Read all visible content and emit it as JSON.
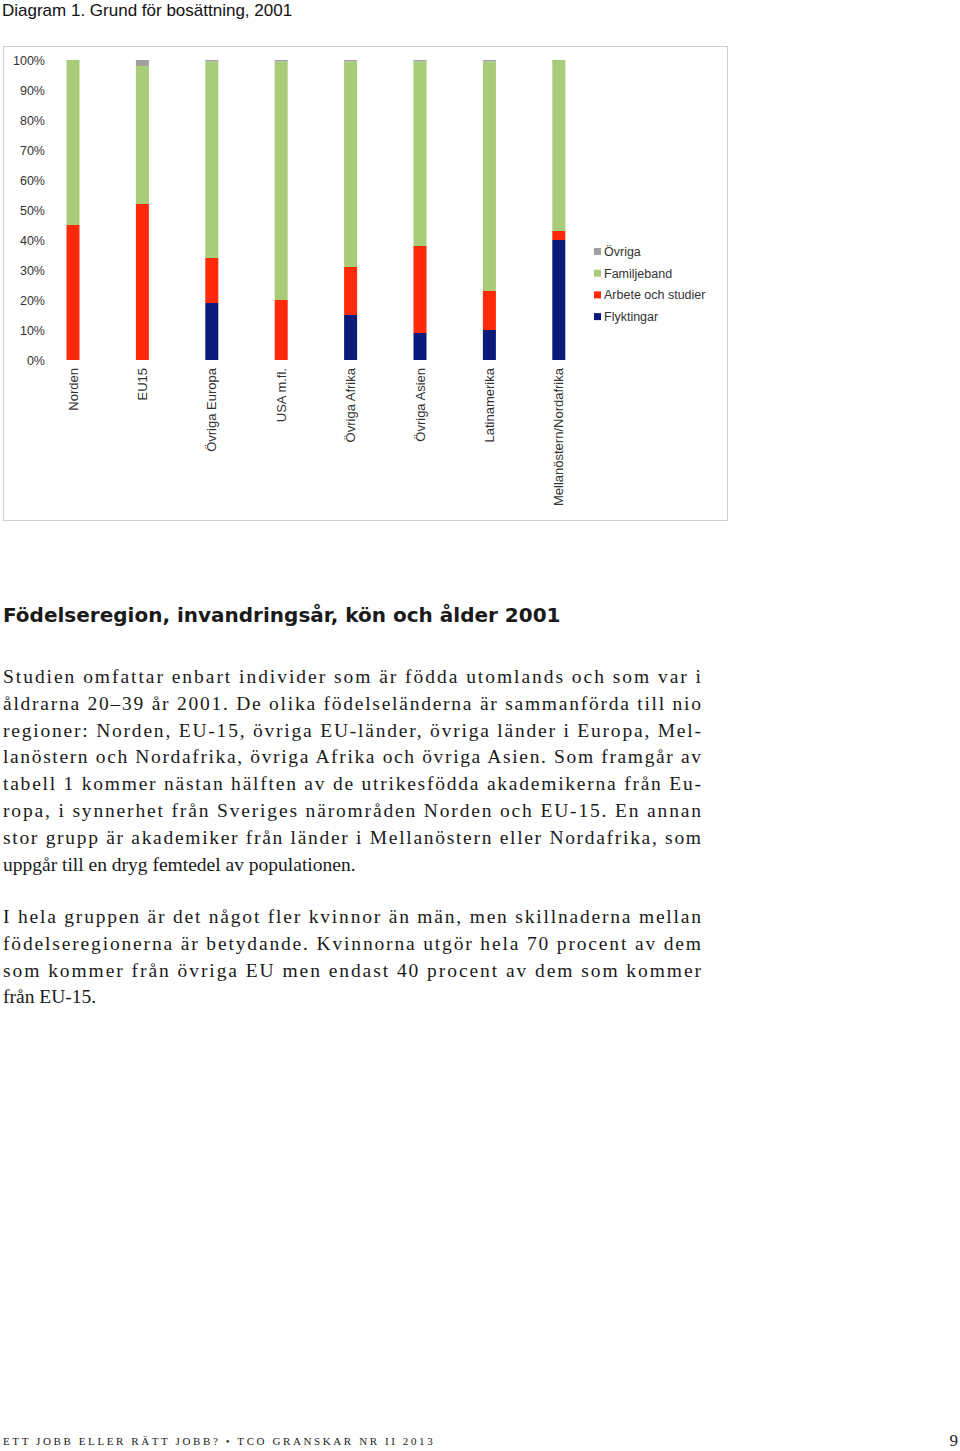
{
  "chart_data": {
    "type": "bar",
    "title": "Diagram 1. Grund för bosättning, 2001",
    "stacked": true,
    "categories": [
      "Norden",
      "EU15",
      "Övriga Europa",
      "USA m.fl.",
      "Övriga Afrika",
      "Övriga Asien",
      "Latinamerika",
      "Mellanöstern/Nordafrika"
    ],
    "series": [
      {
        "name": "Flyktingar",
        "color": "#0a1a7a",
        "values": [
          0,
          0,
          19,
          0,
          15,
          9,
          10,
          40
        ]
      },
      {
        "name": "Arbete och studier",
        "color": "#ff2a0a",
        "values": [
          45,
          52,
          15,
          20,
          16,
          29,
          13,
          3
        ]
      },
      {
        "name": "Familjeband",
        "color": "#a8cc78",
        "values": [
          55,
          46,
          65.5,
          79.5,
          68.5,
          61.5,
          76.5,
          57
        ]
      },
      {
        "name": "Övriga",
        "color": "#a0a0a0",
        "values": [
          0,
          2,
          0.5,
          0.5,
          0.5,
          0.5,
          0.5,
          0
        ]
      }
    ],
    "ylim": [
      0,
      100
    ],
    "yticks": [
      {
        "value": 0,
        "label": "0%"
      },
      {
        "value": 10,
        "label": "10%"
      },
      {
        "value": 20,
        "label": "20%"
      },
      {
        "value": 30,
        "label": "30%"
      },
      {
        "value": 40,
        "label": "40%"
      },
      {
        "value": 50,
        "label": "50%"
      },
      {
        "value": 60,
        "label": "60%"
      },
      {
        "value": 70,
        "label": "70%"
      },
      {
        "value": 80,
        "label": "80%"
      },
      {
        "value": 90,
        "label": "90%"
      },
      {
        "value": 100,
        "label": "100%"
      }
    ],
    "grid": false,
    "legend": "right"
  },
  "heading": "Födelseregion, invandringsår, kön och ålder 2001",
  "paragraphs": [
    {
      "lines": [
        "Studien omfattar enbart individer som är födda utomlands och som var i",
        "åldrarna 20–39 år 2001. De olika födelseländerna är sammanförda till nio",
        "regioner: Norden, EU-15, övriga EU-länder, övriga länder i Europa, Mel-",
        "lanöstern och Nordafrika, övriga Afrika och övriga Asien. Som framgår av",
        "tabell 1 kommer nästan hälften av de utrikesfödda akademikerna från Eu-",
        "ropa, i synnerhet från Sveriges närområden Norden och EU-15. En annan",
        "stor grupp är akademiker från länder i Mellanöstern eller Nordafrika, som",
        "uppgår till en dryg femtedel av populationen."
      ]
    },
    {
      "lines": [
        "I hela gruppen är det något fler kvinnor än män, men skillnaderna mellan",
        "födelseregionerna är betydande. Kvinnorna utgör hela 70 procent av dem",
        "som kommer från övriga EU men endast 40 procent av dem som kommer",
        "från EU-15."
      ]
    }
  ],
  "footer": {
    "text": "ETT JOBB ELLER RÄTT JOBB? • TCO GRANSKAR NR II 2013",
    "page": "9"
  }
}
